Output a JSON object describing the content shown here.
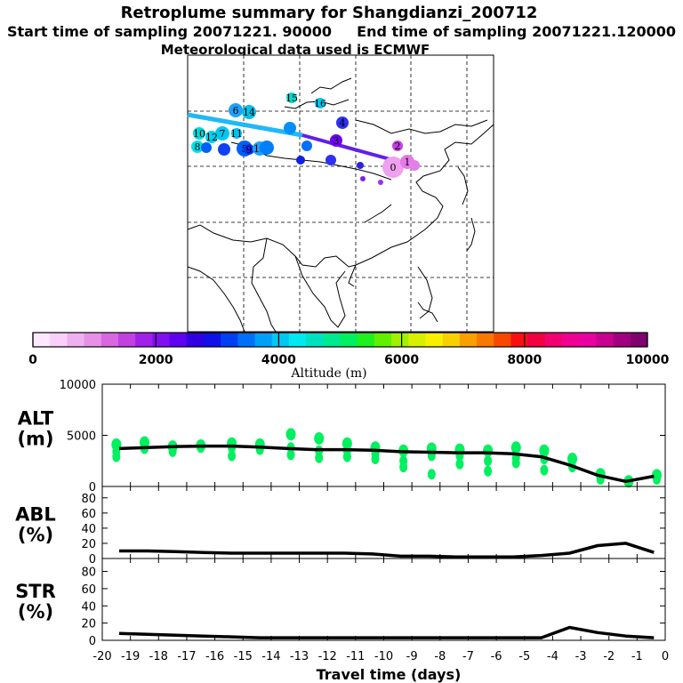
{
  "header": {
    "title": "Retroplume summary for Shangdianzi_200712",
    "start_label": "Start time of sampling 20071221. 90000",
    "end_label": "End time of sampling 20071221.120000",
    "met_label": "Meteorological data used is ECMWF"
  },
  "colorbar": {
    "ticks": [
      "0",
      "2000",
      "4000",
      "6000",
      "8000",
      "10000"
    ],
    "label": "Altitude  (m)",
    "colors": [
      "#ffe8ff",
      "#f8d0f8",
      "#f0b0f0",
      "#e890e8",
      "#d868e0",
      "#c040e0",
      "#a020e8",
      "#8010f0",
      "#6000f0",
      "#3000e0",
      "#1010e8",
      "#0040f0",
      "#0070f8",
      "#00a0f8",
      "#00c8f0",
      "#00e8f0",
      "#00e0c0",
      "#00e890",
      "#00f060",
      "#20f020",
      "#60f000",
      "#a0f000",
      "#d8f000",
      "#f8f000",
      "#f8d000",
      "#f8a000",
      "#f87800",
      "#f84800",
      "#f81010",
      "#f00040",
      "#f00070",
      "#f00090",
      "#e800a0",
      "#c80090",
      "#a00080",
      "#800070"
    ]
  },
  "map": {
    "clusters": [
      {
        "label": "0",
        "color": "#f0a0f0"
      },
      {
        "label": "1",
        "color": "#e878e8"
      },
      {
        "label": "2",
        "color": "#c040e0"
      },
      {
        "label": "3",
        "color": "#7000f0"
      },
      {
        "label": "4",
        "color": "#3030f0"
      },
      {
        "label": "5",
        "color": "#0060f8"
      },
      {
        "label": "6",
        "color": "#20a0f8"
      },
      {
        "label": "7",
        "color": "#00c8f0"
      },
      {
        "label": "8",
        "color": "#00e0e8"
      },
      {
        "label": "9",
        "color": "#1030f0"
      },
      {
        "label": "10",
        "color": "#00d8d8"
      },
      {
        "label": "11",
        "color": "#00c0f0"
      },
      {
        "label": "12",
        "color": "#00d0f0"
      },
      {
        "label": "13",
        "color": "#20a0f8"
      },
      {
        "label": "14",
        "color": "#00c0e8"
      },
      {
        "label": "15",
        "color": "#00d8c8"
      },
      {
        "label": "16",
        "color": "#00c8f0"
      }
    ]
  },
  "chart_data": [
    {
      "type": "scatter+line",
      "panel": "ALT",
      "ylabel": "ALT\n(m)",
      "ylabel_line1": "ALT",
      "ylabel_line2": "(m)",
      "x": [
        -19.4,
        -18.4,
        -17.4,
        -16.4,
        -15.4,
        -14.4,
        -13.4,
        -12.4,
        -11.4,
        -10.4,
        -9.4,
        -8.4,
        -7.4,
        -6.4,
        -5.4,
        -4.4,
        -3.4,
        -2.4,
        -1.4,
        -0.4
      ],
      "line_values": [
        3700,
        3800,
        3900,
        3950,
        3950,
        3850,
        3700,
        3600,
        3600,
        3550,
        3400,
        3350,
        3300,
        3300,
        3200,
        2900,
        2100,
        1100,
        500,
        1000
      ],
      "cluster_points": [
        {
          "x": -19.5,
          "y": [
            4100,
            3400,
            2900
          ]
        },
        {
          "x": -18.5,
          "y": [
            4300,
            3700
          ]
        },
        {
          "x": -17.5,
          "y": [
            3900,
            3400
          ]
        },
        {
          "x": -16.5,
          "y": [
            4000,
            3800
          ]
        },
        {
          "x": -15.4,
          "y": [
            4200,
            3800,
            3000
          ]
        },
        {
          "x": -14.4,
          "y": [
            4100,
            3600
          ]
        },
        {
          "x": -13.3,
          "y": [
            5100,
            3800,
            3100
          ]
        },
        {
          "x": -12.3,
          "y": [
            4700,
            3500,
            2800
          ]
        },
        {
          "x": -11.3,
          "y": [
            4200,
            3500,
            2900
          ]
        },
        {
          "x": -10.3,
          "y": [
            3800,
            3200,
            2700
          ]
        },
        {
          "x": -9.3,
          "y": [
            3500,
            2500,
            1900
          ]
        },
        {
          "x": -8.3,
          "y": [
            3700,
            3000,
            1200
          ]
        },
        {
          "x": -7.3,
          "y": [
            3600,
            3000,
            2200
          ]
        },
        {
          "x": -6.3,
          "y": [
            3500,
            2500,
            1500
          ]
        },
        {
          "x": -5.3,
          "y": [
            3800,
            2800,
            2300
          ]
        },
        {
          "x": -4.3,
          "y": [
            3500,
            2700,
            1600
          ]
        },
        {
          "x": -3.3,
          "y": [
            2700,
            1900
          ]
        },
        {
          "x": -2.3,
          "y": [
            1200,
            700
          ]
        },
        {
          "x": -1.3,
          "y": [
            500
          ]
        },
        {
          "x": -0.3,
          "y": [
            1100,
            700
          ]
        }
      ],
      "ylim": [
        0,
        10000
      ],
      "yticks": [
        "0",
        "5000",
        "10000"
      ],
      "point_color": "#00f060"
    },
    {
      "type": "line",
      "panel": "ABL",
      "ylabel_line1": "ABL",
      "ylabel_line2": "(%)",
      "x": [
        -19.4,
        -18.4,
        -17.4,
        -16.4,
        -15.4,
        -14.4,
        -13.4,
        -12.4,
        -11.4,
        -10.4,
        -9.4,
        -8.4,
        -7.4,
        -6.4,
        -5.4,
        -4.4,
        -3.4,
        -2.4,
        -1.4,
        -0.4
      ],
      "values": [
        10,
        10,
        9,
        8,
        7,
        7,
        7,
        7,
        7,
        6,
        3,
        3,
        2,
        2,
        2,
        4,
        7,
        17,
        20,
        8
      ],
      "ylim": [
        0,
        95
      ],
      "yticks": [
        "0",
        "20",
        "40",
        "60",
        "80"
      ]
    },
    {
      "type": "line",
      "panel": "STR",
      "ylabel_line1": "STR",
      "ylabel_line2": "(%)",
      "x": [
        -19.4,
        -18.4,
        -17.4,
        -16.4,
        -15.4,
        -14.4,
        -13.4,
        -12.4,
        -11.4,
        -10.4,
        -9.4,
        -8.4,
        -7.4,
        -6.4,
        -5.4,
        -4.4,
        -3.4,
        -2.4,
        -1.4,
        -0.4
      ],
      "values": [
        8,
        7,
        6,
        5,
        4,
        3,
        3,
        3,
        3,
        3,
        3,
        3,
        3,
        3,
        3,
        3,
        15,
        9,
        5,
        3
      ],
      "ylim": [
        0,
        95
      ],
      "yticks": [
        "0",
        "20",
        "40",
        "60",
        "80"
      ]
    }
  ],
  "xaxis": {
    "ticks": [
      "-20",
      "-19",
      "-18",
      "-17",
      "-16",
      "-15",
      "-14",
      "-13",
      "-12",
      "-11",
      "-10",
      "-9",
      "-8",
      "-7",
      "-6",
      "-5",
      "-4",
      "-3",
      "-2",
      "-1",
      "0"
    ],
    "label": "Travel time (days)",
    "range": [
      -20,
      0
    ]
  }
}
